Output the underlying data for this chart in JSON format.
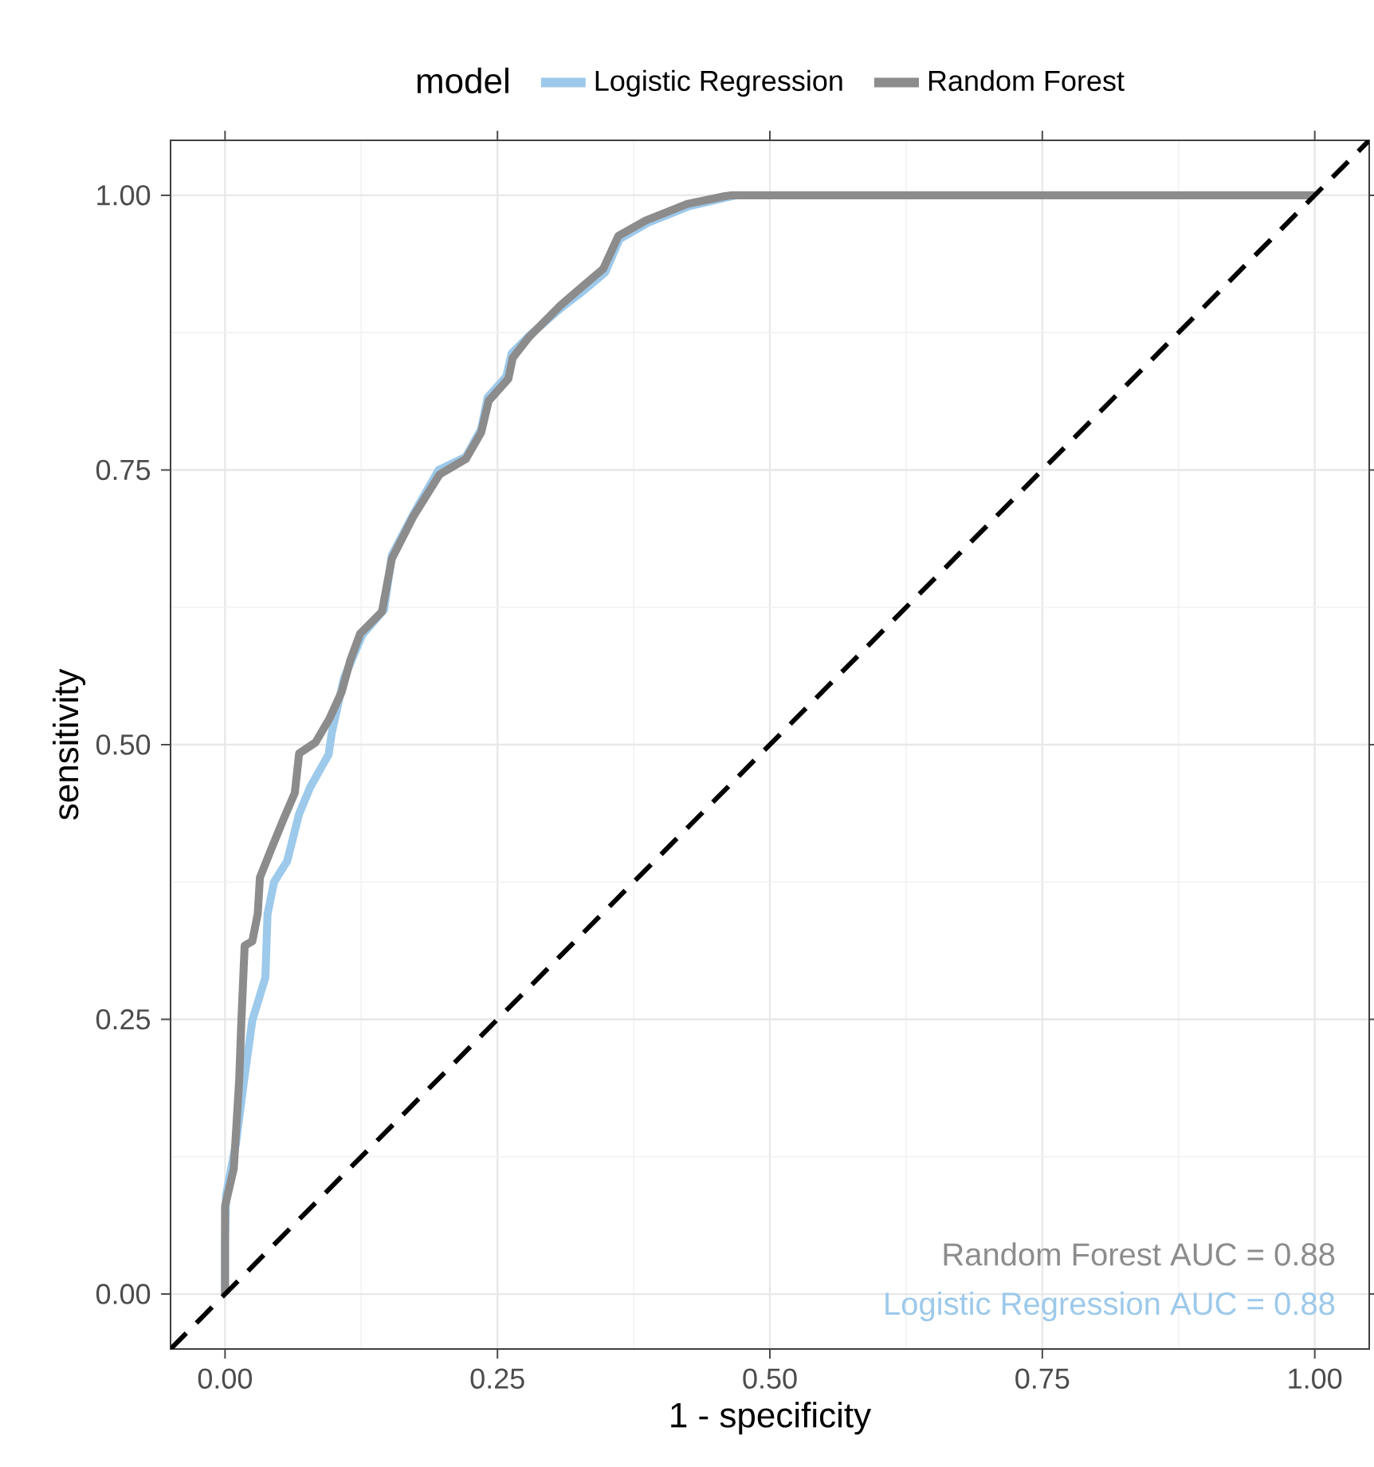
{
  "chart_data": {
    "type": "line",
    "xlabel": "1 - specificity",
    "ylabel": "sensitivity",
    "legend_title": "model",
    "legend": "top",
    "grid": true,
    "xlim": [
      -0.05,
      1.05
    ],
    "ylim": [
      -0.05,
      1.05
    ],
    "xticks": [
      {
        "value": 0,
        "label": "0.00"
      },
      {
        "value": 0.25,
        "label": "0.25"
      },
      {
        "value": 0.5,
        "label": "0.50"
      },
      {
        "value": 0.75,
        "label": "0.75"
      },
      {
        "value": 1,
        "label": "1.00"
      }
    ],
    "yticks": [
      {
        "value": 0,
        "label": "0.00"
      },
      {
        "value": 0.25,
        "label": "0.25"
      },
      {
        "value": 0.5,
        "label": "0.50"
      },
      {
        "value": 0.75,
        "label": "0.75"
      },
      {
        "value": 1,
        "label": "1.00"
      }
    ],
    "series": [
      {
        "name": "Logistic Regression",
        "color": "#9dc9ea",
        "x": [
          0,
          0,
          0.001,
          0.01,
          0.017,
          0.025,
          0.037,
          0.039,
          0.045,
          0.057,
          0.068,
          0.078,
          0.095,
          0.098,
          0.109,
          0.126,
          0.146,
          0.153,
          0.173,
          0.196,
          0.221,
          0.235,
          0.241,
          0.258,
          0.263,
          0.279,
          0.309,
          0.33,
          0.349,
          0.362,
          0.388,
          0.426,
          0.46,
          0.47,
          1
        ],
        "values": [
          0,
          0.05,
          0.09,
          0.137,
          0.191,
          0.249,
          0.288,
          0.346,
          0.375,
          0.394,
          0.437,
          0.461,
          0.491,
          0.511,
          0.56,
          0.6,
          0.623,
          0.672,
          0.71,
          0.75,
          0.762,
          0.787,
          0.816,
          0.835,
          0.856,
          0.872,
          0.898,
          0.914,
          0.93,
          0.96,
          0.975,
          0.99,
          0.998,
          1,
          1
        ]
      },
      {
        "name": "Random Forest",
        "color": "#8c8c8c",
        "x": [
          0,
          0,
          0.008,
          0.013,
          0.015,
          0.018,
          0.025,
          0.03,
          0.032,
          0.042,
          0.054,
          0.064,
          0.068,
          0.083,
          0.096,
          0.107,
          0.115,
          0.124,
          0.144,
          0.153,
          0.173,
          0.197,
          0.221,
          0.235,
          0.242,
          0.26,
          0.264,
          0.279,
          0.308,
          0.328,
          0.347,
          0.361,
          0.386,
          0.424,
          0.458,
          0.465,
          1
        ],
        "values": [
          0,
          0.08,
          0.114,
          0.195,
          0.249,
          0.317,
          0.321,
          0.346,
          0.379,
          0.404,
          0.433,
          0.456,
          0.492,
          0.502,
          0.524,
          0.548,
          0.577,
          0.601,
          0.621,
          0.669,
          0.708,
          0.746,
          0.76,
          0.784,
          0.813,
          0.833,
          0.852,
          0.871,
          0.9,
          0.917,
          0.933,
          0.963,
          0.977,
          0.992,
          0.999,
          1,
          1
        ]
      },
      {
        "color": "#000000",
        "line_style": "dashed",
        "x": [
          -0.05,
          1.05
        ],
        "values": [
          -0.05,
          1.05
        ]
      }
    ],
    "annotations": [
      "Random Forest AUC =  0.88",
      "Logistic Regression AUC =  0.88"
    ]
  }
}
